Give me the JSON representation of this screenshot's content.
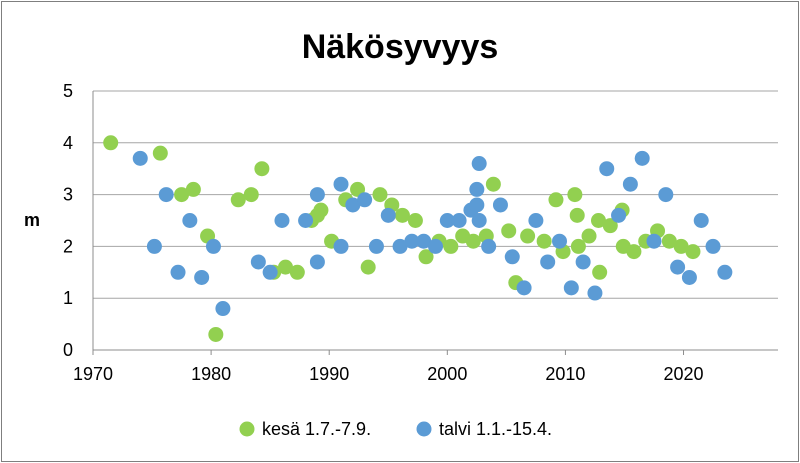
{
  "chart_data": {
    "type": "scatter",
    "title": "Näkösyvyys",
    "xlabel": "",
    "ylabel": "m",
    "xlim": [
      1970,
      2028
    ],
    "ylim": [
      0,
      5
    ],
    "x_ticks": [
      "1970",
      "1980",
      "1990",
      "2000",
      "2010",
      "2020"
    ],
    "y_ticks": [
      "0",
      "1",
      "2",
      "3",
      "4",
      "5"
    ],
    "grid": "horizontal",
    "legend_position": "bottom",
    "series": [
      {
        "name": "kesä 1.7.-7.9.",
        "color": "#92d050",
        "points": [
          [
            1971.5,
            4.0
          ],
          [
            1975.7,
            3.8
          ],
          [
            1977.5,
            3.0
          ],
          [
            1978.5,
            3.1
          ],
          [
            1979.7,
            2.2
          ],
          [
            1980.4,
            0.3
          ],
          [
            1982.3,
            2.9
          ],
          [
            1983.4,
            3.0
          ],
          [
            1984.3,
            3.5
          ],
          [
            1985.3,
            1.5
          ],
          [
            1986.3,
            1.6
          ],
          [
            1987.3,
            1.5
          ],
          [
            1988.5,
            2.5
          ],
          [
            1989.0,
            2.6
          ],
          [
            1989.3,
            2.7
          ],
          [
            1990.2,
            2.1
          ],
          [
            1991.4,
            2.9
          ],
          [
            1992.4,
            3.1
          ],
          [
            1993.3,
            1.6
          ],
          [
            1994.3,
            3.0
          ],
          [
            1995.3,
            2.8
          ],
          [
            1996.2,
            2.6
          ],
          [
            1997.3,
            2.5
          ],
          [
            1998.2,
            1.8
          ],
          [
            1999.3,
            2.1
          ],
          [
            2000.3,
            2.0
          ],
          [
            2001.3,
            2.2
          ],
          [
            2002.2,
            2.1
          ],
          [
            2003.3,
            2.2
          ],
          [
            2003.9,
            3.2
          ],
          [
            2005.2,
            2.3
          ],
          [
            2005.8,
            1.3
          ],
          [
            2006.8,
            2.2
          ],
          [
            2008.2,
            2.1
          ],
          [
            2009.2,
            2.9
          ],
          [
            2009.8,
            1.9
          ],
          [
            2010.8,
            3.0
          ],
          [
            2011.0,
            2.6
          ],
          [
            2011.1,
            2.0
          ],
          [
            2012.0,
            2.2
          ],
          [
            2012.8,
            2.5
          ],
          [
            2012.9,
            1.5
          ],
          [
            2013.8,
            2.4
          ],
          [
            2014.8,
            2.7
          ],
          [
            2014.9,
            2.0
          ],
          [
            2015.8,
            1.9
          ],
          [
            2016.8,
            2.1
          ],
          [
            2017.8,
            2.3
          ],
          [
            2018.8,
            2.1
          ],
          [
            2019.8,
            2.0
          ],
          [
            2020.8,
            1.9
          ]
        ]
      },
      {
        "name": "talvi 1.1.-15.4.",
        "color": "#5b9bd5",
        "points": [
          [
            1974.0,
            3.7
          ],
          [
            1975.2,
            2.0
          ],
          [
            1976.2,
            3.0
          ],
          [
            1977.2,
            1.5
          ],
          [
            1978.2,
            2.5
          ],
          [
            1979.2,
            1.4
          ],
          [
            1980.2,
            2.0
          ],
          [
            1981.0,
            0.8
          ],
          [
            1984.0,
            1.7
          ],
          [
            1985.0,
            1.5
          ],
          [
            1986.0,
            2.5
          ],
          [
            1988.0,
            2.5
          ],
          [
            1989.0,
            3.0
          ],
          [
            1989.0,
            1.7
          ],
          [
            1991.0,
            3.2
          ],
          [
            1991.0,
            2.0
          ],
          [
            1992.0,
            2.8
          ],
          [
            1993.0,
            2.9
          ],
          [
            1994.0,
            2.0
          ],
          [
            1995.0,
            2.6
          ],
          [
            1996.0,
            2.0
          ],
          [
            1997.0,
            2.1
          ],
          [
            1998.0,
            2.1
          ],
          [
            1999.0,
            2.0
          ],
          [
            2000.0,
            2.5
          ],
          [
            2001.0,
            2.5
          ],
          [
            2002.0,
            2.7
          ],
          [
            2002.5,
            2.8
          ],
          [
            2002.5,
            3.1
          ],
          [
            2002.7,
            2.5
          ],
          [
            2002.7,
            3.6
          ],
          [
            2003.5,
            2.0
          ],
          [
            2004.5,
            2.8
          ],
          [
            2005.5,
            1.8
          ],
          [
            2006.5,
            1.2
          ],
          [
            2007.5,
            2.5
          ],
          [
            2008.5,
            1.7
          ],
          [
            2009.5,
            2.1
          ],
          [
            2010.5,
            1.2
          ],
          [
            2011.5,
            1.7
          ],
          [
            2012.5,
            1.1
          ],
          [
            2013.5,
            3.5
          ],
          [
            2014.5,
            2.6
          ],
          [
            2015.5,
            3.2
          ],
          [
            2016.5,
            3.7
          ],
          [
            2017.5,
            2.1
          ],
          [
            2018.5,
            3.0
          ],
          [
            2019.5,
            1.6
          ],
          [
            2020.5,
            1.4
          ],
          [
            2021.5,
            2.5
          ],
          [
            2022.5,
            2.0
          ],
          [
            2023.5,
            1.5
          ]
        ]
      }
    ]
  }
}
